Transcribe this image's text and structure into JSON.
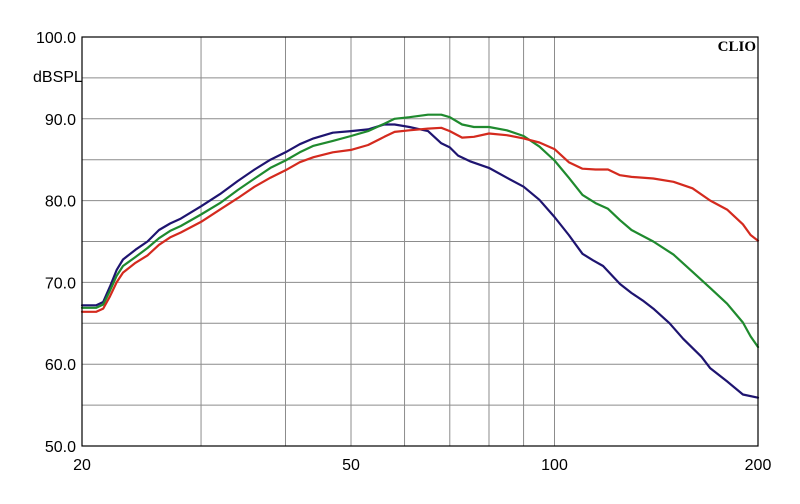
{
  "chart_data": {
    "type": "line",
    "brand": "CLIO",
    "ylabel": "dBSPL",
    "xscale": "log",
    "xlim": [
      20,
      200
    ],
    "ylim": [
      50,
      100
    ],
    "x_major_ticks": [
      {
        "value": 20,
        "label": "20"
      },
      {
        "value": 50,
        "label": "50"
      },
      {
        "value": 100,
        "label": "100"
      },
      {
        "value": 200,
        "label": "200"
      }
    ],
    "x_grid": [
      20,
      30,
      40,
      50,
      60,
      70,
      80,
      90,
      100,
      200
    ],
    "y_ticks": [
      {
        "value": 50,
        "label": "50.0"
      },
      {
        "value": 60,
        "label": "60.0"
      },
      {
        "value": 70,
        "label": "70.0"
      },
      {
        "value": 80,
        "label": "80.0"
      },
      {
        "value": 90,
        "label": "90.0"
      },
      {
        "value": 100,
        "label": "100.0"
      }
    ],
    "y_minor_grid": [
      55,
      65,
      75,
      85,
      95
    ],
    "grid": true,
    "series": [
      {
        "color": "#1e1470",
        "points": [
          [
            20,
            67.2
          ],
          [
            21,
            67.2
          ],
          [
            21.5,
            67.6
          ],
          [
            22,
            69.5
          ],
          [
            22.5,
            71.5
          ],
          [
            23,
            72.8
          ],
          [
            24,
            74.0
          ],
          [
            25,
            75.0
          ],
          [
            26,
            76.4
          ],
          [
            27,
            77.2
          ],
          [
            28,
            77.8
          ],
          [
            30,
            79.3
          ],
          [
            32,
            80.8
          ],
          [
            34,
            82.4
          ],
          [
            36,
            83.8
          ],
          [
            38,
            85.0
          ],
          [
            40,
            85.9
          ],
          [
            42,
            86.9
          ],
          [
            44,
            87.6
          ],
          [
            47,
            88.3
          ],
          [
            50,
            88.5
          ],
          [
            53,
            88.7
          ],
          [
            56,
            89.3
          ],
          [
            58,
            89.3
          ],
          [
            61,
            89.0
          ],
          [
            65,
            88.5
          ],
          [
            68,
            87.0
          ],
          [
            70,
            86.5
          ],
          [
            72,
            85.5
          ],
          [
            75,
            84.8
          ],
          [
            80,
            84.0
          ],
          [
            85,
            82.8
          ],
          [
            90,
            81.7
          ],
          [
            95,
            80.1
          ],
          [
            100,
            78.0
          ],
          [
            105,
            75.8
          ],
          [
            110,
            73.5
          ],
          [
            114,
            72.7
          ],
          [
            118,
            72.0
          ],
          [
            125,
            69.8
          ],
          [
            130,
            68.7
          ],
          [
            135,
            67.8
          ],
          [
            140,
            66.8
          ],
          [
            148,
            65.0
          ],
          [
            155,
            63.1
          ],
          [
            165,
            60.9
          ],
          [
            170,
            59.5
          ],
          [
            180,
            57.9
          ],
          [
            190,
            56.3
          ],
          [
            200,
            55.9
          ]
        ]
      },
      {
        "color": "#1f8a2e",
        "points": [
          [
            20,
            66.9
          ],
          [
            21,
            66.9
          ],
          [
            21.5,
            67.3
          ],
          [
            22,
            69.0
          ],
          [
            22.5,
            70.8
          ],
          [
            23,
            72.0
          ],
          [
            24,
            73.1
          ],
          [
            25,
            74.2
          ],
          [
            26,
            75.4
          ],
          [
            27,
            76.3
          ],
          [
            28,
            76.9
          ],
          [
            30,
            78.3
          ],
          [
            32,
            79.7
          ],
          [
            34,
            81.3
          ],
          [
            36,
            82.7
          ],
          [
            38,
            84.0
          ],
          [
            40,
            84.9
          ],
          [
            42,
            85.9
          ],
          [
            44,
            86.7
          ],
          [
            47,
            87.3
          ],
          [
            50,
            87.9
          ],
          [
            53,
            88.5
          ],
          [
            56,
            89.4
          ],
          [
            58,
            90.0
          ],
          [
            61,
            90.2
          ],
          [
            65,
            90.5
          ],
          [
            68,
            90.5
          ],
          [
            70,
            90.2
          ],
          [
            73,
            89.3
          ],
          [
            76,
            89.0
          ],
          [
            80,
            89.0
          ],
          [
            85,
            88.6
          ],
          [
            90,
            87.9
          ],
          [
            95,
            86.6
          ],
          [
            100,
            84.9
          ],
          [
            105,
            82.8
          ],
          [
            110,
            80.7
          ],
          [
            115,
            79.7
          ],
          [
            120,
            79.0
          ],
          [
            125,
            77.6
          ],
          [
            130,
            76.4
          ],
          [
            140,
            75.0
          ],
          [
            150,
            73.4
          ],
          [
            160,
            71.3
          ],
          [
            170,
            69.3
          ],
          [
            180,
            67.4
          ],
          [
            190,
            65.1
          ],
          [
            195,
            63.4
          ],
          [
            200,
            62.1
          ]
        ]
      },
      {
        "color": "#d42a1e",
        "points": [
          [
            20,
            66.4
          ],
          [
            21,
            66.4
          ],
          [
            21.5,
            66.8
          ],
          [
            22,
            68.3
          ],
          [
            22.5,
            70.0
          ],
          [
            23,
            71.2
          ],
          [
            24,
            72.4
          ],
          [
            25,
            73.3
          ],
          [
            26,
            74.6
          ],
          [
            27,
            75.5
          ],
          [
            28,
            76.1
          ],
          [
            30,
            77.4
          ],
          [
            32,
            78.9
          ],
          [
            34,
            80.3
          ],
          [
            36,
            81.7
          ],
          [
            38,
            82.8
          ],
          [
            40,
            83.7
          ],
          [
            42,
            84.7
          ],
          [
            44,
            85.3
          ],
          [
            47,
            85.9
          ],
          [
            50,
            86.2
          ],
          [
            53,
            86.8
          ],
          [
            56,
            87.8
          ],
          [
            58,
            88.4
          ],
          [
            61,
            88.6
          ],
          [
            65,
            88.8
          ],
          [
            68,
            88.9
          ],
          [
            70,
            88.5
          ],
          [
            73,
            87.7
          ],
          [
            76,
            87.8
          ],
          [
            80,
            88.2
          ],
          [
            85,
            88.0
          ],
          [
            90,
            87.6
          ],
          [
            95,
            87.1
          ],
          [
            100,
            86.3
          ],
          [
            105,
            84.7
          ],
          [
            110,
            83.9
          ],
          [
            115,
            83.8
          ],
          [
            120,
            83.8
          ],
          [
            125,
            83.1
          ],
          [
            130,
            82.9
          ],
          [
            140,
            82.7
          ],
          [
            150,
            82.3
          ],
          [
            160,
            81.5
          ],
          [
            170,
            80.0
          ],
          [
            180,
            78.9
          ],
          [
            190,
            77.1
          ],
          [
            195,
            75.8
          ],
          [
            200,
            75.1
          ]
        ]
      }
    ]
  }
}
